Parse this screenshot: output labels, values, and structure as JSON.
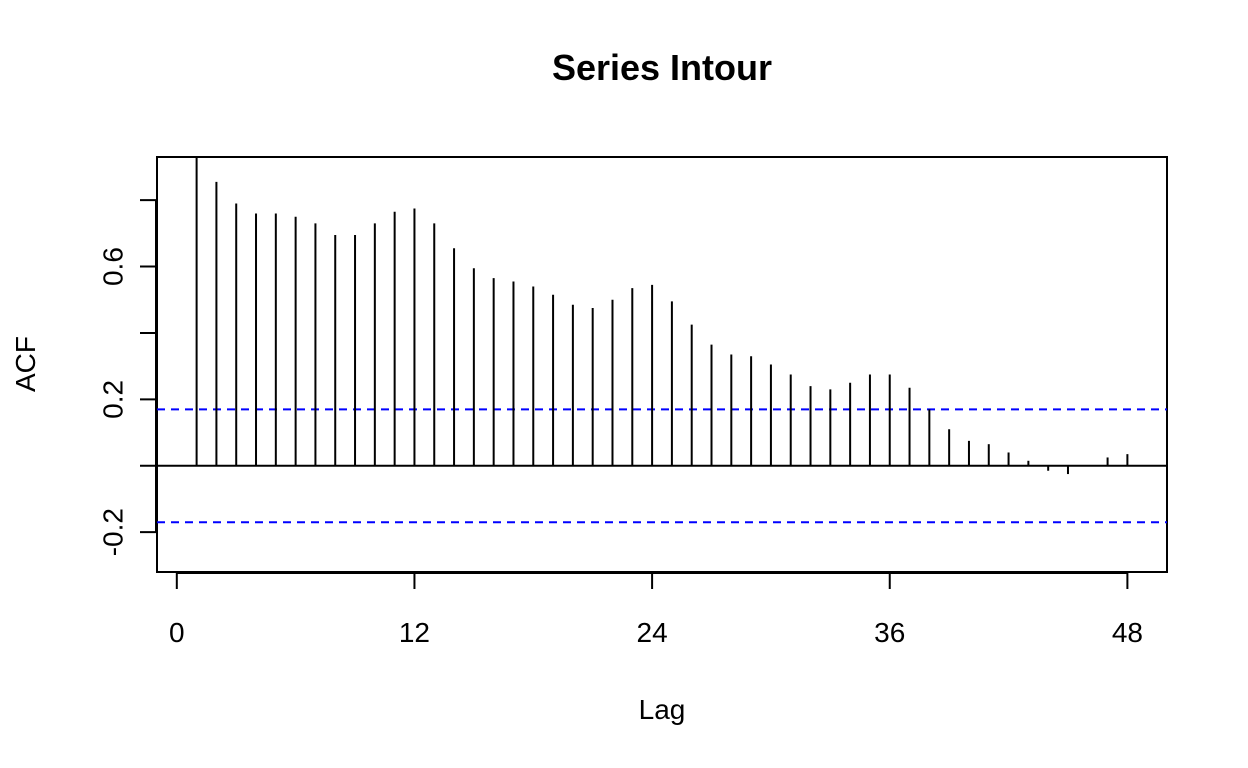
{
  "chart_data": {
    "type": "bar",
    "title": "Series  Intour",
    "xlabel": "Lag",
    "ylabel": "ACF",
    "xlim": [
      -1,
      50
    ],
    "ylim": [
      -0.32,
      0.93
    ],
    "x_ticks": [
      0,
      12,
      24,
      36,
      48
    ],
    "x_tick_labels": [
      "0",
      "12",
      "24",
      "36",
      "48"
    ],
    "y_ticks": [
      -0.2,
      0.2,
      0.6
    ],
    "y_tick_labels": [
      "-0.2",
      "0.2",
      "0.6"
    ],
    "y_minor_ticks": [
      0.0,
      0.4,
      0.8
    ],
    "grid": false,
    "confidence_bounds": [
      0.17,
      -0.17
    ],
    "confidence_color": "#0000ff",
    "bar_color": "#000000",
    "lags": [
      1,
      2,
      3,
      4,
      5,
      6,
      7,
      8,
      9,
      10,
      11,
      12,
      13,
      14,
      15,
      16,
      17,
      18,
      19,
      20,
      21,
      22,
      23,
      24,
      25,
      26,
      27,
      28,
      29,
      30,
      31,
      32,
      33,
      34,
      35,
      36,
      37,
      38,
      39,
      40,
      41,
      42,
      43,
      44,
      45,
      46,
      47,
      48
    ],
    "values": [
      0.93,
      0.855,
      0.79,
      0.76,
      0.76,
      0.75,
      0.73,
      0.695,
      0.695,
      0.73,
      0.765,
      0.775,
      0.73,
      0.655,
      0.595,
      0.565,
      0.555,
      0.54,
      0.515,
      0.485,
      0.475,
      0.5,
      0.535,
      0.545,
      0.495,
      0.425,
      0.365,
      0.335,
      0.33,
      0.305,
      0.275,
      0.24,
      0.23,
      0.25,
      0.275,
      0.275,
      0.235,
      0.17,
      0.11,
      0.075,
      0.065,
      0.04,
      0.015,
      -0.015,
      -0.025,
      0.0,
      0.025,
      0.035
    ]
  }
}
